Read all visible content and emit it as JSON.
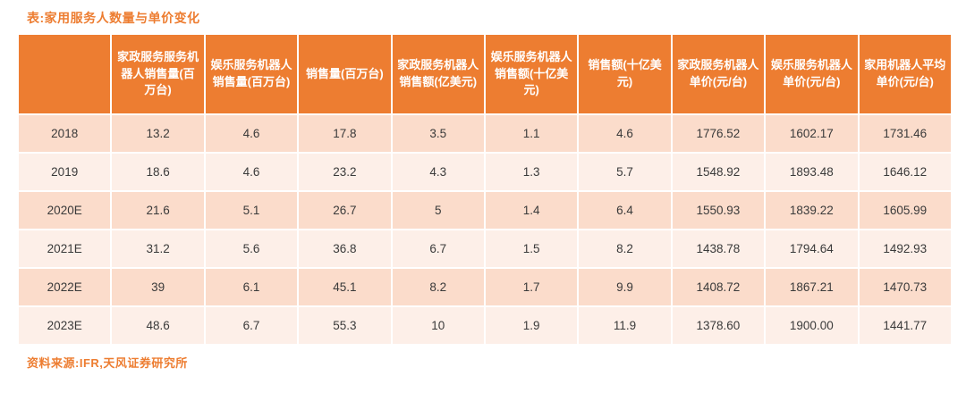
{
  "title": "表:家用服务人数量与单价变化",
  "source": "资料来源:IFR,天风证券研究所",
  "colors": {
    "accent_orange": "#ED7D31",
    "header_text": "#FFFFFF",
    "row_band_dark": "#FBDCCB",
    "row_band_light": "#FDEFE8",
    "body_text": "#3A3A3A"
  },
  "table": {
    "columns": [
      "",
      "家政服务服务机器人销售量(百万台)",
      "娱乐服务机器人销售量(百万台)",
      "销售量(百万台)",
      "家政服务机器人销售额(亿美元)",
      "娱乐服务机器人销售额(十亿美元)",
      "销售额(十亿美元)",
      "家政服务机器人单价(元/台)",
      "娱乐服务机器人单价(元/台)",
      "家用机器人平均单价(元/台)"
    ],
    "rows": [
      {
        "year": "2018",
        "cells": [
          "13.2",
          "4.6",
          "17.8",
          "3.5",
          "1.1",
          "4.6",
          "1776.52",
          "1602.17",
          "1731.46"
        ]
      },
      {
        "year": "2019",
        "cells": [
          "18.6",
          "4.6",
          "23.2",
          "4.3",
          "1.3",
          "5.7",
          "1548.92",
          "1893.48",
          "1646.12"
        ]
      },
      {
        "year": "2020E",
        "cells": [
          "21.6",
          "5.1",
          "26.7",
          "5",
          "1.4",
          "6.4",
          "1550.93",
          "1839.22",
          "1605.99"
        ]
      },
      {
        "year": "2021E",
        "cells": [
          "31.2",
          "5.6",
          "36.8",
          "6.7",
          "1.5",
          "8.2",
          "1438.78",
          "1794.64",
          "1492.93"
        ]
      },
      {
        "year": "2022E",
        "cells": [
          "39",
          "6.1",
          "45.1",
          "8.2",
          "1.7",
          "9.9",
          "1408.72",
          "1867.21",
          "1470.73"
        ]
      },
      {
        "year": "2023E",
        "cells": [
          "48.6",
          "6.7",
          "55.3",
          "10",
          "1.9",
          "11.9",
          "1378.60",
          "1900.00",
          "1441.77"
        ]
      }
    ]
  }
}
